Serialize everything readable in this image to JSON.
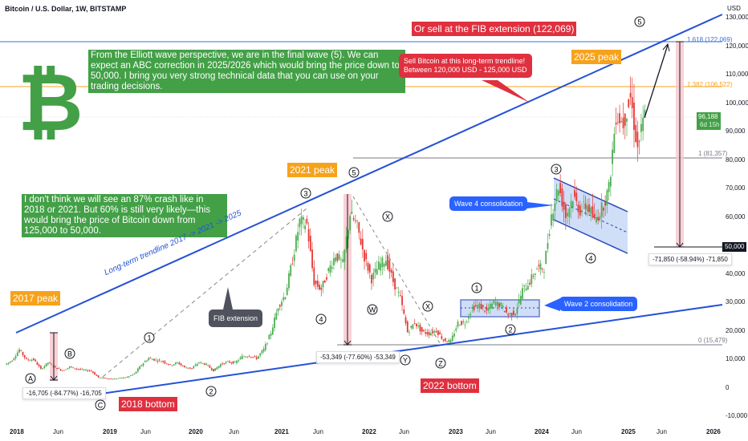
{
  "header": {
    "title": "Bitcoin / U.S. Dollar, 1W, BITSTAMP"
  },
  "logo": {
    "glyph": "₿",
    "color": "#43a047"
  },
  "annotations": {
    "elliott_note": "From the Elliott wave perspective, we are in the final wave (5). We can expect an ABC correction in 2025/2026 which would bring the price down to 50,000. I bring you very strong technical data that you can use on your trading decisions.",
    "crash_note": "I don't think we will see an 87% crash like in 2018 or 2021. But 60% is still very likely—this would bring the price of Bitcoin down from 125,000 to 50,000.",
    "peak_2017": "2017 peak",
    "peak_2021": "2021 peak",
    "peak_2025": "2025 peak",
    "bottom_2018": "2018 bottom",
    "bottom_2022": "2022 bottom",
    "fib_sell": "Or sell at the FIB extension (122,069)",
    "sell_callout_1": "Sell Bitcoin at this long-term trendline!",
    "sell_callout_2": "Between 120,000 USD - 125,000 USD",
    "trendline_label": "Long-term trendline 2017 -> 2021 -> 2025",
    "fib_extension": "FIB extension",
    "wave2": "Wave 2 consolidation",
    "wave4": "Wave 4 consolidation",
    "measure_2018": "-16,705 (-84.77%) -16,705",
    "measure_2021": "-53,349 (-77.60%) -53,349",
    "measure_2025": "-71,850 (-58.94%) -71,850"
  },
  "wave_labels": [
    "A",
    "B",
    "C",
    "1",
    "2",
    "3",
    "4",
    "5",
    "W",
    "X",
    "X",
    "Y",
    "Z",
    "1",
    "2",
    "3",
    "4",
    "5"
  ],
  "fib_levels": [
    {
      "label": "1.618 (122,069)",
      "value": 122069,
      "color": "#3d6fd8"
    },
    {
      "label": "1.382 (106,522)",
      "value": 106522,
      "color": "#f7a21b"
    },
    {
      "label": "1 (81,357)",
      "value": 81357,
      "color": "#787b86"
    },
    {
      "label": "0 (15,479)",
      "value": 15479,
      "color": "#787b86"
    }
  ],
  "price_axis": {
    "unit": "USD",
    "ticks": [
      "130,000",
      "120,000",
      "110,000",
      "100,000",
      "90,000",
      "80,000",
      "70,000",
      "60,000",
      "50,000",
      "40,000",
      "30,000",
      "20,000",
      "10,000",
      "0",
      "-10,000"
    ],
    "target_label": "50,000",
    "current_price": "96,188",
    "countdown": "6d 15h"
  },
  "time_axis": {
    "ticks": [
      "2018",
      "Jun",
      "2019",
      "Jun",
      "2020",
      "Jun",
      "2021",
      "Jun",
      "2022",
      "Jun",
      "2023",
      "Jun",
      "2024",
      "Jun",
      "2025",
      "Jun",
      "2026"
    ]
  },
  "chart_data": {
    "type": "candlestick",
    "title": "Bitcoin / U.S. Dollar, 1W, BITSTAMP",
    "ylim": [
      -10000,
      130000
    ],
    "xlim": [
      "2017-11",
      "2026-01"
    ],
    "up_color": "#4caf50",
    "down_color": "#e53935",
    "approx_monthly_close": {
      "start": "2017-11",
      "values": [
        10000,
        13800,
        10200,
        10300,
        6900,
        9200,
        7500,
        6400,
        7700,
        7000,
        6600,
        6300,
        4000,
        3700,
        3450,
        3800,
        4100,
        5300,
        8500,
        10800,
        10100,
        9600,
        8300,
        9200,
        7550,
        7200,
        9350,
        8550,
        6400,
        8600,
        9450,
        9140,
        11350,
        11650,
        10780,
        13800,
        19700,
        29000,
        33100,
        45200,
        58800,
        57700,
        37300,
        35000,
        41500,
        47100,
        43800,
        61300,
        57000,
        46300,
        38500,
        43200,
        45500,
        37700,
        31800,
        19900,
        23300,
        20050,
        19400,
        20500,
        17150,
        16550,
        23100,
        23150,
        28500,
        29250,
        27200,
        30450,
        29250,
        25950,
        26950,
        34650,
        37700,
        42300,
        42600,
        61200,
        71300,
        60600,
        67500,
        62700,
        64600,
        59000,
        63300,
        70200,
        96400,
        93400,
        102400,
        84300,
        96188
      ]
    },
    "target": 50000
  }
}
